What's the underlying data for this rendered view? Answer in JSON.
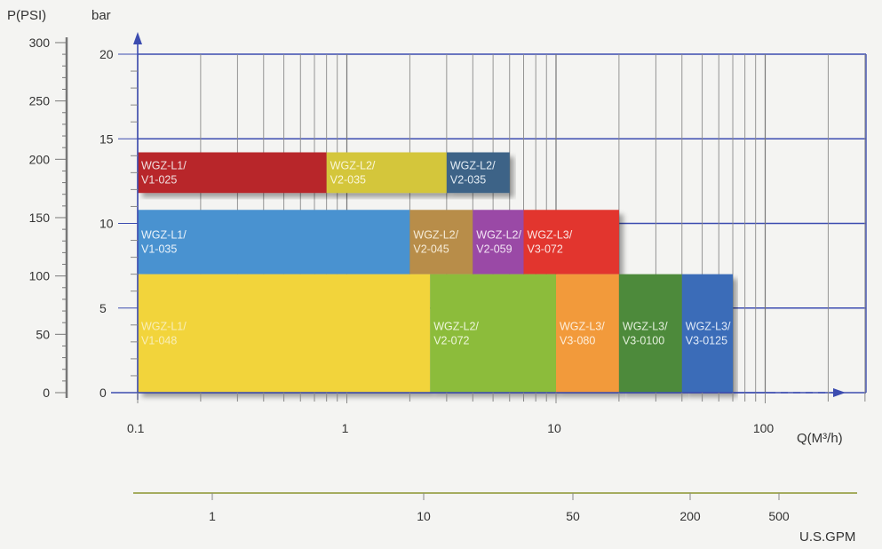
{
  "chart_data": {
    "type": "bar",
    "axes": {
      "x": {
        "label": "Q(M³/h)",
        "scale": "log",
        "range": [
          0.1,
          500
        ],
        "ticks": [
          0.1,
          1,
          10,
          100
        ],
        "tick_labels": [
          "0.1",
          "1",
          "10",
          "100"
        ]
      },
      "y_bar": {
        "label": "bar",
        "range": [
          0,
          20
        ],
        "ticks": [
          0,
          5,
          10,
          15,
          20
        ],
        "tick_labels": [
          "0",
          "5",
          "10",
          "15",
          "20"
        ]
      },
      "y_psi": {
        "label": "P(PSI)",
        "range": [
          0,
          300
        ],
        "ticks": [
          0,
          50,
          100,
          150,
          200,
          250,
          300
        ],
        "tick_labels": [
          "0",
          "50",
          "100",
          "150",
          "200",
          "250",
          "300"
        ]
      },
      "x_gpm": {
        "label": "U.S.GPM",
        "ticks": [
          1,
          10,
          50,
          200,
          500
        ],
        "tick_labels": [
          "1",
          "10",
          "50",
          "200",
          "500"
        ]
      }
    },
    "grid": true,
    "series": [
      {
        "name": "WGZ-L1/\nV1-025",
        "q": [
          0.1,
          0.8
        ],
        "p": [
          11.8,
          14.2
        ],
        "color": "#b8262b",
        "text_color": "#f0e0e0"
      },
      {
        "name": "WGZ-L2/\nV2-035",
        "q": [
          0.8,
          3.0
        ],
        "p": [
          11.8,
          14.2
        ],
        "color": "#d4c63a",
        "text_color": "#faf6d8"
      },
      {
        "name": "WGZ-L2/\nV2-035",
        "q": [
          3.0,
          6.0
        ],
        "p": [
          11.8,
          14.2
        ],
        "color": "#3d6487",
        "text_color": "#e3ecf4"
      },
      {
        "name": "WGZ-L1/\nV1-035",
        "q": [
          0.1,
          2.0
        ],
        "p": [
          7.0,
          10.8
        ],
        "color": "#4a92d0",
        "text_color": "#eaf3fa"
      },
      {
        "name": "WGZ-L2/\nV2-045",
        "q": [
          2.0,
          4.0
        ],
        "p": [
          7.0,
          10.8
        ],
        "color": "#b88d48",
        "text_color": "#f6ecd8"
      },
      {
        "name": "WGZ-L2/\nV2-059",
        "q": [
          4.0,
          7.0
        ],
        "p": [
          7.0,
          10.8
        ],
        "color": "#9a4aa6",
        "text_color": "#f2e4f4"
      },
      {
        "name": "WGZ-L3/\nV3-072",
        "q": [
          7.0,
          20.0
        ],
        "p": [
          7.0,
          10.8
        ],
        "color": "#e2342f",
        "text_color": "#fbe4e2"
      },
      {
        "name": "WGZ-L1/\nV1-048",
        "q": [
          0.1,
          2.5
        ],
        "p": [
          0,
          7.0
        ],
        "color": "#f2d43a",
        "text_color": "#f8eeb8"
      },
      {
        "name": "WGZ-L2/\nV2-072",
        "q": [
          2.5,
          10.0
        ],
        "p": [
          0,
          7.0
        ],
        "color": "#8cbc3a",
        "text_color": "#eef6dc"
      },
      {
        "name": "WGZ-L3/\nV3-080",
        "q": [
          10.0,
          20.0
        ],
        "p": [
          0,
          7.0
        ],
        "color": "#f29a3a",
        "text_color": "#fdeedc"
      },
      {
        "name": "WGZ-L3/\nV3-0100",
        "q": [
          20.0,
          40.0
        ],
        "p": [
          0,
          7.0
        ],
        "color": "#4e8a3a",
        "text_color": "#e4f0dc"
      },
      {
        "name": "WGZ-L3/\nV3-0125",
        "q": [
          40.0,
          70.0
        ],
        "p": [
          0,
          7.0
        ],
        "color": "#3a6cb8",
        "text_color": "#e2ebf8"
      }
    ]
  }
}
